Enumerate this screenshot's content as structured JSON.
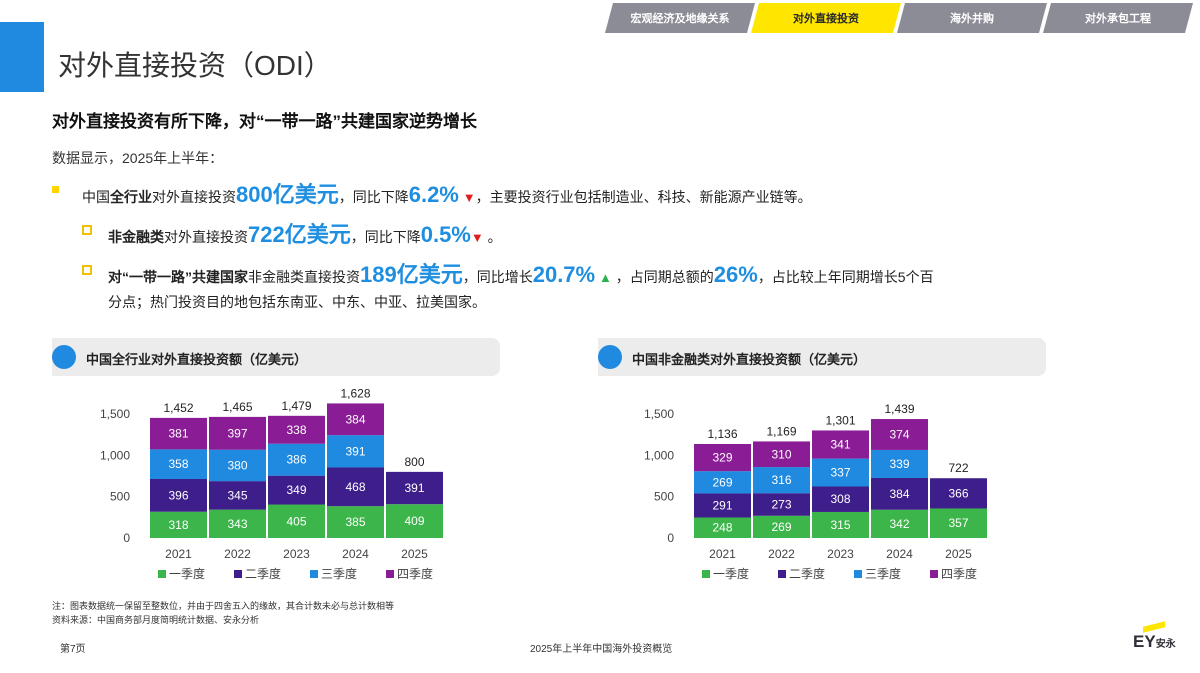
{
  "tabs": [
    {
      "label": "宏观经济及地缘关系",
      "active": false
    },
    {
      "label": "对外直接投资",
      "active": true
    },
    {
      "label": "海外并购",
      "active": false
    },
    {
      "label": "对外承包工程",
      "active": false
    }
  ],
  "page_title": "对外直接投资（ODI）",
  "subtitle": "对外直接投资有所下降，对“一带一路”共建国家逆势增长",
  "intro": "数据显示，2025年上半年：",
  "bullet1": {
    "p1": "中国",
    "p2": "全行业",
    "p3": "对外直接投资",
    "amount": "800亿美元",
    "p4": "，同比下降",
    "pct": "6.2%",
    "arrow": "▼",
    "p5": "，主要投资行业包括制造业、科技、新能源产业链等。"
  },
  "bullet2": {
    "p1": "非金融类",
    "p2": "对外直接投资",
    "amount": "722亿美元",
    "p3": "，同比下降",
    "pct": "0.5%",
    "arrow": "▼",
    "p4": "。"
  },
  "bullet3": {
    "p1": "对“一带一路”共建国家",
    "p2": "非金融类直接投资",
    "amount": "189亿美元",
    "p3": "，同比增长",
    "pct": "20.7%",
    "arrow": "▲",
    "p4": "，占同期总额的",
    "share": "26%",
    "p5": "，占比较上年同期增长5个百",
    "line2": "分点；热门投资目的地包括东南亚、中东、中亚、拉美国家。"
  },
  "chart1_title": "中国全行业对外直接投资额（亿美元）",
  "chart2_title": "中国非金融类对外直接投资额（亿美元）",
  "colors": {
    "q1": "#3cb54a",
    "q2": "#3d1e8a",
    "q3": "#1f8ae0",
    "q4": "#8a1d96",
    "accent": "#ffe600"
  },
  "chart_data": [
    {
      "type": "bar",
      "stacked": true,
      "title": "中国全行业对外直接投资额（亿美元）",
      "categories": [
        "2021",
        "2022",
        "2023",
        "2024",
        "2025"
      ],
      "series": [
        {
          "name": "一季度",
          "values": [
            318,
            343,
            405,
            385,
            409
          ]
        },
        {
          "name": "二季度",
          "values": [
            396,
            345,
            349,
            468,
            391
          ]
        },
        {
          "name": "三季度",
          "values": [
            358,
            380,
            386,
            391,
            null
          ]
        },
        {
          "name": "四季度",
          "values": [
            381,
            397,
            338,
            384,
            null
          ]
        }
      ],
      "totals": [
        "1,452",
        "1,465",
        "1,479",
        "1,628",
        "800"
      ],
      "yticks": [
        "0",
        "500",
        "1,000",
        "1,500"
      ],
      "ylim": [
        0,
        1500
      ],
      "legend": "bottom"
    },
    {
      "type": "bar",
      "stacked": true,
      "title": "中国非金融类对外直接投资额（亿美元）",
      "categories": [
        "2021",
        "2022",
        "2023",
        "2024",
        "2025"
      ],
      "series": [
        {
          "name": "一季度",
          "values": [
            248,
            269,
            315,
            342,
            357
          ]
        },
        {
          "name": "二季度",
          "values": [
            291,
            273,
            308,
            384,
            366
          ]
        },
        {
          "name": "三季度",
          "values": [
            269,
            316,
            337,
            339,
            null
          ]
        },
        {
          "name": "四季度",
          "values": [
            329,
            310,
            341,
            374,
            null
          ]
        }
      ],
      "totals": [
        "1,136",
        "1,169",
        "1,301",
        "1,439",
        "722"
      ],
      "yticks": [
        "0",
        "500",
        "1,000",
        "1,500"
      ],
      "ylim": [
        0,
        1500
      ],
      "legend": "bottom"
    }
  ],
  "footnote1": "注：图表数据统一保留至整数位，并由于四舍五入的缘故，其合计数未必与总计数相等",
  "footnote2": "资料来源：中国商务部月度简明统计数据、安永分析",
  "page_number": "第7页",
  "footer_text": "2025年上半年中国海外投资概览",
  "logo": {
    "ey": "EY",
    "cn": "安永"
  }
}
